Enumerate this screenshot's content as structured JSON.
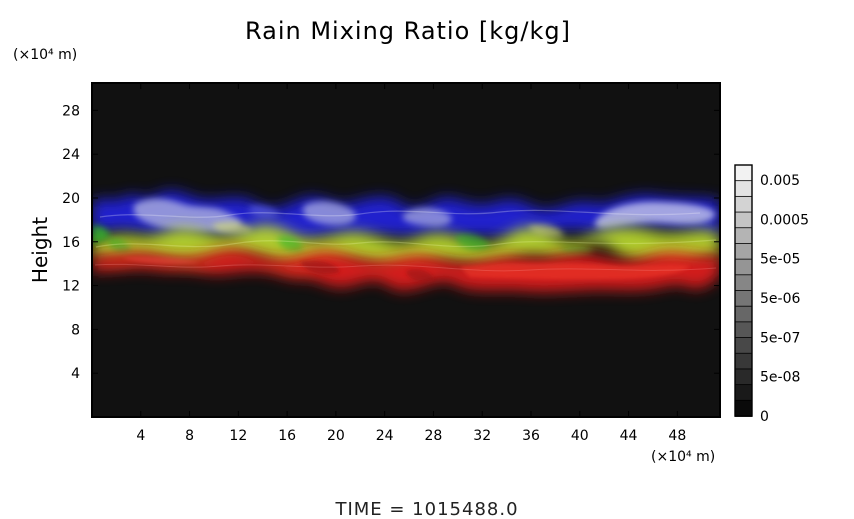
{
  "colors": {
    "background": "#111111",
    "blue": "#2a2ad8",
    "blue_light": "#a9acde",
    "yellow_green": "#b8d62e",
    "green": "#35b62a",
    "red": "#d81f1f",
    "colorbar_black": "#050505"
  },
  "chart_data": {
    "type": "heatmap",
    "title": "Rain Mixing Ratio [kg/kg]",
    "ylabel": "Height",
    "x_unit": "(×10⁴ m)",
    "y_unit": "(×10⁴ m)",
    "x_ticks": [
      "4",
      "8",
      "12",
      "16",
      "20",
      "24",
      "28",
      "32",
      "36",
      "40",
      "44",
      "48"
    ],
    "y_ticks": [
      "4",
      "8",
      "12",
      "16",
      "20",
      "24",
      "28"
    ],
    "xlim": [
      0,
      51.5
    ],
    "ylim": [
      0,
      30.5
    ],
    "colorbar": {
      "tick_labels": [
        "0.005",
        "0.0005",
        "5e-05",
        "5e-06",
        "5e-07",
        "5e-08",
        "0"
      ],
      "bands": 16
    },
    "layers": [
      {
        "name": "upper",
        "color": "blue",
        "y_min": 16.5,
        "y_max": 20
      },
      {
        "name": "middle",
        "color": "yellow-green",
        "y_min": 14,
        "y_max": 17.5
      },
      {
        "name": "lower",
        "color": "red",
        "y_min": 11.5,
        "y_max": 15
      }
    ],
    "time_label": "TIME = 1015488.0"
  }
}
